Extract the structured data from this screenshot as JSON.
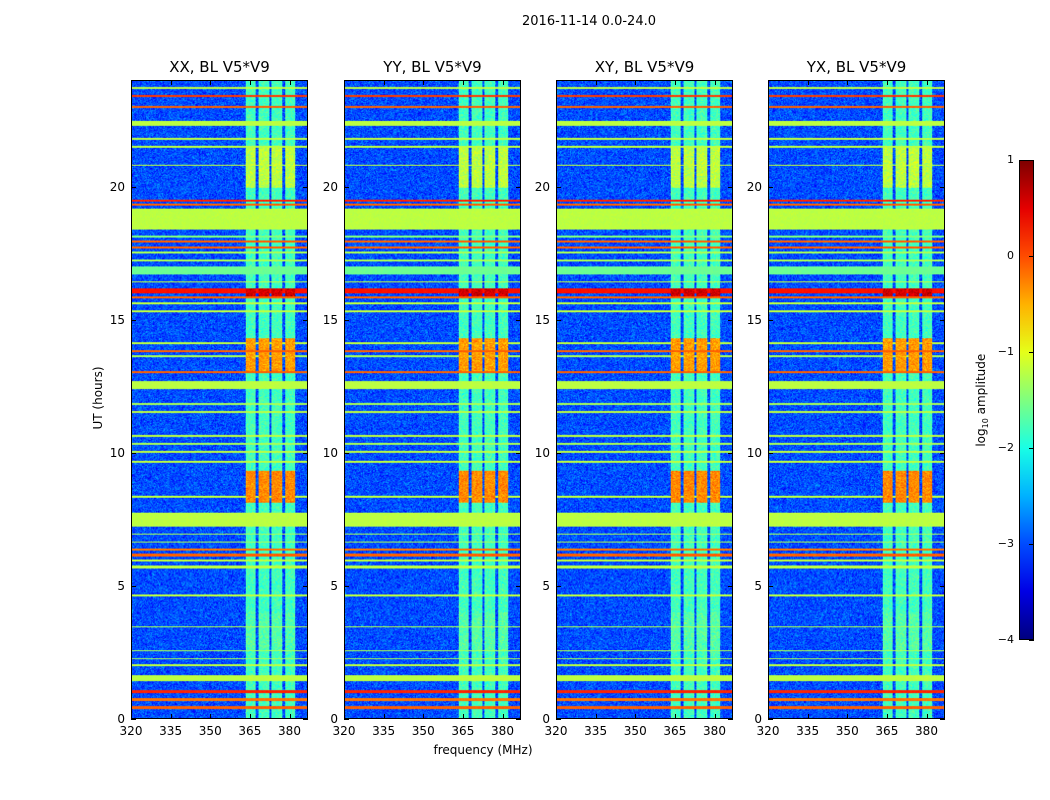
{
  "suptitle": "2016-11-14 0.0-24.0",
  "chart_data": {
    "type": "heatmap",
    "panels": [
      {
        "title": "XX, BL V5*V9",
        "id": "xx"
      },
      {
        "title": "YY, BL V5*V9",
        "id": "yy"
      },
      {
        "title": "XY, BL V5*V9",
        "id": "xy"
      },
      {
        "title": "YX, BL V5*V9",
        "id": "yx"
      }
    ],
    "xlabel": "frequency (MHz)",
    "ylabel": "UT (hours)",
    "xlim": [
      320,
      387
    ],
    "ylim": [
      0,
      24
    ],
    "xticks": [
      "320",
      "335",
      "350",
      "365",
      "380"
    ],
    "yticks": [
      "0",
      "5",
      "10",
      "15",
      "20"
    ],
    "colorbar": {
      "label_parts": [
        "log",
        "10",
        " amplitude"
      ],
      "clim": [
        -4,
        1
      ],
      "ticks": [
        "1",
        "0",
        "−1",
        "−2",
        "−3",
        "−4"
      ],
      "colormap": "jet"
    },
    "background_level": -3.0,
    "rfi_columns": [
      {
        "f0": 363.5,
        "f1": 367.5
      },
      {
        "f0": 368.5,
        "f1": 372.5
      },
      {
        "f0": 373.5,
        "f1": 377.5
      },
      {
        "f0": 378.5,
        "f1": 382.5
      }
    ],
    "rfi_column_level": -1.8,
    "rfi_bursts": [
      {
        "t0": 8.1,
        "t1": 9.3,
        "level": -0.3
      },
      {
        "t0": 13.0,
        "t1": 14.3,
        "level": -0.4
      },
      {
        "t0": 15.9,
        "t1": 16.2,
        "level": 0.6
      },
      {
        "t0": 20.0,
        "t1": 21.5,
        "level": -1.2
      },
      {
        "t0": 2.5,
        "t1": 4.0,
        "level": -1.7
      }
    ],
    "horizontal_bands": [
      {
        "t0": 0.35,
        "t1": 0.45,
        "level": -0.1
      },
      {
        "t0": 0.65,
        "t1": 0.75,
        "level": -0.2
      },
      {
        "t0": 0.95,
        "t1": 1.05,
        "level": 0.2
      },
      {
        "t0": 1.4,
        "t1": 1.62,
        "level": -1.2
      },
      {
        "t0": 1.95,
        "t1": 2.02,
        "level": -1.2
      },
      {
        "t0": 2.2,
        "t1": 2.27,
        "level": -1.3
      },
      {
        "t0": 2.5,
        "t1": 2.56,
        "level": -1.3
      },
      {
        "t0": 3.4,
        "t1": 3.46,
        "level": -1.3
      },
      {
        "t0": 4.6,
        "t1": 4.66,
        "level": -1.2
      },
      {
        "t0": 5.65,
        "t1": 5.75,
        "level": -1.2
      },
      {
        "t0": 5.9,
        "t1": 5.96,
        "level": -1.2
      },
      {
        "t0": 6.1,
        "t1": 6.18,
        "level": -0.1
      },
      {
        "t0": 6.3,
        "t1": 6.37,
        "level": -0.2
      },
      {
        "t0": 6.6,
        "t1": 6.66,
        "level": -1.3
      },
      {
        "t0": 6.9,
        "t1": 6.96,
        "level": -1.3
      },
      {
        "t0": 7.2,
        "t1": 7.75,
        "level": -1.2
      },
      {
        "t0": 8.3,
        "t1": 8.36,
        "level": -1.2
      },
      {
        "t0": 9.6,
        "t1": 9.68,
        "level": -1.2
      },
      {
        "t0": 10.0,
        "t1": 10.08,
        "level": -1.2
      },
      {
        "t0": 10.3,
        "t1": 10.36,
        "level": -1.3
      },
      {
        "t0": 10.6,
        "t1": 10.66,
        "level": -1.2
      },
      {
        "t0": 11.5,
        "t1": 11.58,
        "level": -1.2
      },
      {
        "t0": 11.8,
        "t1": 11.86,
        "level": -1.3
      },
      {
        "t0": 12.4,
        "t1": 12.7,
        "level": -1.2
      },
      {
        "t0": 13.0,
        "t1": 13.07,
        "level": -0.1
      },
      {
        "t0": 13.6,
        "t1": 13.66,
        "level": -1.3
      },
      {
        "t0": 13.8,
        "t1": 13.87,
        "level": -0.1
      },
      {
        "t0": 14.1,
        "t1": 14.17,
        "level": -1.2
      },
      {
        "t0": 15.3,
        "t1": 15.37,
        "level": -1.2
      },
      {
        "t0": 15.6,
        "t1": 15.67,
        "level": -1.2
      },
      {
        "t0": 15.8,
        "t1": 15.87,
        "level": -0.1
      },
      {
        "t0": 16.0,
        "t1": 16.2,
        "level": 0.3
      },
      {
        "t0": 16.4,
        "t1": 16.46,
        "level": -1.2
      },
      {
        "t0": 16.7,
        "t1": 17.0,
        "level": -1.6
      },
      {
        "t0": 17.2,
        "t1": 17.26,
        "level": -1.3
      },
      {
        "t0": 17.5,
        "t1": 17.56,
        "level": -1.3
      },
      {
        "t0": 17.7,
        "t1": 17.78,
        "level": -0.1
      },
      {
        "t0": 17.9,
        "t1": 17.98,
        "level": -0.1
      },
      {
        "t0": 18.1,
        "t1": 18.16,
        "level": -1.5
      },
      {
        "t0": 18.4,
        "t1": 19.2,
        "level": -1.2
      },
      {
        "t0": 19.3,
        "t1": 19.37,
        "level": -0.1
      },
      {
        "t0": 19.45,
        "t1": 19.52,
        "level": 0.2
      },
      {
        "t0": 20.8,
        "t1": 20.86,
        "level": -1.2
      },
      {
        "t0": 21.5,
        "t1": 21.56,
        "level": -1.2
      },
      {
        "t0": 21.8,
        "t1": 21.86,
        "level": -1.2
      },
      {
        "t0": 22.3,
        "t1": 22.5,
        "level": -1.2
      },
      {
        "t0": 23.0,
        "t1": 23.07,
        "level": -0.1
      },
      {
        "t0": 23.4,
        "t1": 23.47,
        "level": 0.1
      },
      {
        "t0": 23.7,
        "t1": 23.76,
        "level": -1.2
      }
    ]
  }
}
